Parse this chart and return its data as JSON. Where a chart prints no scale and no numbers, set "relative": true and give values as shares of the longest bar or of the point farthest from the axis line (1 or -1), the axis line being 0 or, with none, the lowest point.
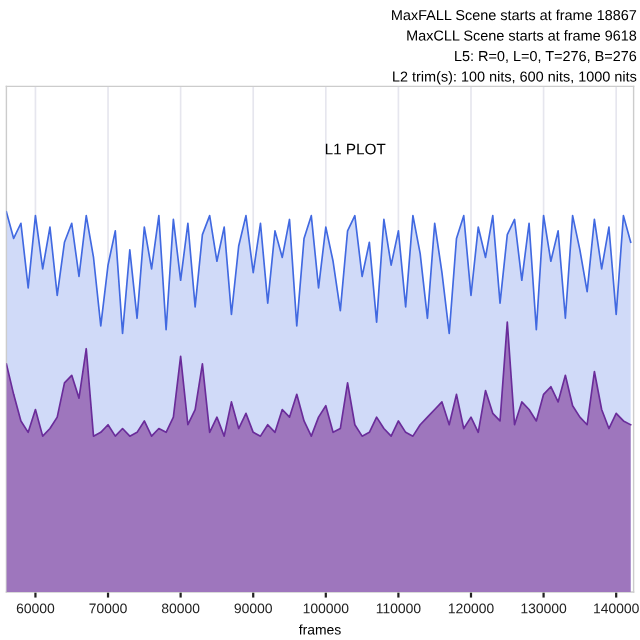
{
  "chart_data": {
    "type": "area",
    "title": "L1 PLOT",
    "xlabel": "frames",
    "relative": true,
    "grid": "x",
    "legend": false,
    "annotations": [
      "MaxFALL Scene starts at frame 18867",
      "MaxCLL Scene starts at frame 9618",
      "L5: R=0, L=0, T=276, B=276",
      "L2 trim(s): 100 nits, 600 nits, 1000 nits"
    ],
    "xlim": [
      56000,
      142400
    ],
    "xticks": [
      60000,
      70000,
      80000,
      90000,
      100000,
      110000,
      120000,
      130000,
      140000
    ],
    "x": [
      56000,
      57000,
      58000,
      59000,
      60000,
      61000,
      62000,
      63000,
      64000,
      65000,
      66000,
      67000,
      68000,
      69000,
      70000,
      71000,
      72000,
      73000,
      74000,
      75000,
      76000,
      77000,
      78000,
      79000,
      80000,
      81000,
      82000,
      83000,
      84000,
      85000,
      86000,
      87000,
      88000,
      89000,
      90000,
      91000,
      92000,
      93000,
      94000,
      95000,
      96000,
      97000,
      98000,
      99000,
      100000,
      101000,
      102000,
      103000,
      104000,
      105000,
      106000,
      107000,
      108000,
      109000,
      110000,
      111000,
      112000,
      113000,
      114000,
      115000,
      116000,
      117000,
      118000,
      119000,
      120000,
      121000,
      122000,
      123000,
      124000,
      125000,
      126000,
      127000,
      128000,
      129000,
      130000,
      131000,
      132000,
      133000,
      134000,
      135000,
      136000,
      137000,
      138000,
      139000,
      140000,
      141000,
      142000
    ],
    "series": [
      {
        "color": "#4169e1",
        "values": [
          1.0,
          0.93,
          0.97,
          0.8,
          0.99,
          0.85,
          0.96,
          0.78,
          0.92,
          0.97,
          0.83,
          0.99,
          0.88,
          0.7,
          0.86,
          0.95,
          0.68,
          0.9,
          0.72,
          0.96,
          0.85,
          0.99,
          0.69,
          0.98,
          0.82,
          0.97,
          0.75,
          0.94,
          0.99,
          0.87,
          0.96,
          0.73,
          0.91,
          0.99,
          0.84,
          0.97,
          0.76,
          0.95,
          0.88,
          0.98,
          0.7,
          0.93,
          0.99,
          0.8,
          0.96,
          0.87,
          0.74,
          0.95,
          0.99,
          0.83,
          0.92,
          0.71,
          0.98,
          0.86,
          0.95,
          0.75,
          0.99,
          0.89,
          0.72,
          0.97,
          0.84,
          0.68,
          0.93,
          0.99,
          0.78,
          0.96,
          0.88,
          0.99,
          0.76,
          0.94,
          0.98,
          0.82,
          0.97,
          0.69,
          0.99,
          0.87,
          0.95,
          0.72,
          0.99,
          0.9,
          0.79,
          0.98,
          0.85,
          0.96,
          0.73,
          0.99,
          0.92
        ]
      },
      {
        "color": "#6a2c9a",
        "values": [
          0.6,
          0.52,
          0.45,
          0.42,
          0.48,
          0.41,
          0.43,
          0.46,
          0.55,
          0.57,
          0.51,
          0.64,
          0.41,
          0.42,
          0.44,
          0.41,
          0.43,
          0.41,
          0.42,
          0.45,
          0.41,
          0.43,
          0.42,
          0.46,
          0.62,
          0.44,
          0.48,
          0.6,
          0.42,
          0.46,
          0.41,
          0.5,
          0.43,
          0.47,
          0.42,
          0.41,
          0.44,
          0.42,
          0.48,
          0.46,
          0.52,
          0.45,
          0.41,
          0.46,
          0.49,
          0.42,
          0.43,
          0.55,
          0.44,
          0.41,
          0.42,
          0.46,
          0.43,
          0.41,
          0.45,
          0.42,
          0.41,
          0.44,
          0.46,
          0.48,
          0.5,
          0.44,
          0.52,
          0.43,
          0.46,
          0.42,
          0.53,
          0.47,
          0.45,
          0.71,
          0.44,
          0.5,
          0.48,
          0.45,
          0.52,
          0.54,
          0.5,
          0.57,
          0.49,
          0.46,
          0.44,
          0.58,
          0.48,
          0.43,
          0.47,
          0.45,
          0.44
        ]
      }
    ]
  }
}
